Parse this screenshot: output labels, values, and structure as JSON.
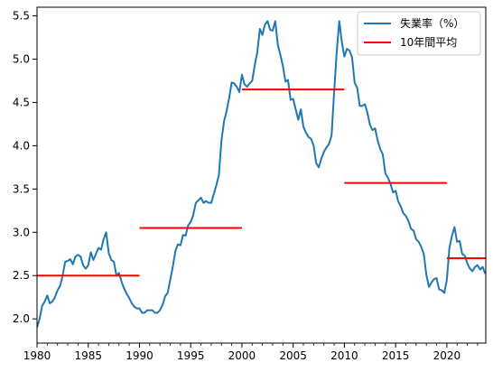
{
  "chart_data": {
    "type": "line",
    "title": "",
    "xlabel": "",
    "ylabel": "",
    "xlim": [
      1980,
      2023.8
    ],
    "ylim": [
      1.72,
      5.6
    ],
    "grid": false,
    "legend_position": "top-right",
    "x_ticks": [
      1980,
      1985,
      1990,
      1995,
      2000,
      2005,
      2010,
      2015,
      2020
    ],
    "x_tick_labels": [
      "1980",
      "1985",
      "1990",
      "1995",
      "2000",
      "2005",
      "2010",
      "2015",
      "2020"
    ],
    "y_ticks": [
      2.0,
      2.5,
      3.0,
      3.5,
      4.0,
      4.5,
      5.0,
      5.5
    ],
    "y_tick_labels": [
      "2.0",
      "2.5",
      "3.0",
      "3.5",
      "4.0",
      "4.5",
      "5.0",
      "5.5"
    ],
    "colors": {
      "rate": "#1f77b4",
      "avg": "#ff0000"
    },
    "series": [
      {
        "name": "失業率（%）",
        "kind": "line",
        "x": [
          1980.0,
          1980.25,
          1980.5,
          1980.75,
          1981.0,
          1981.25,
          1981.5,
          1981.75,
          1982.0,
          1982.25,
          1982.5,
          1982.75,
          1983.0,
          1983.25,
          1983.5,
          1983.75,
          1984.0,
          1984.25,
          1984.5,
          1984.75,
          1985.0,
          1985.25,
          1985.5,
          1985.75,
          1986.0,
          1986.25,
          1986.5,
          1986.75,
          1987.0,
          1987.25,
          1987.5,
          1987.75,
          1988.0,
          1988.25,
          1988.5,
          1988.75,
          1989.0,
          1989.25,
          1989.5,
          1989.75,
          1990.0,
          1990.25,
          1990.5,
          1990.75,
          1991.0,
          1991.25,
          1991.5,
          1991.75,
          1992.0,
          1992.25,
          1992.5,
          1992.75,
          1993.0,
          1993.25,
          1993.5,
          1993.75,
          1994.0,
          1994.25,
          1994.5,
          1994.75,
          1995.0,
          1995.25,
          1995.5,
          1995.75,
          1996.0,
          1996.25,
          1996.5,
          1996.75,
          1997.0,
          1997.25,
          1997.5,
          1997.75,
          1998.0,
          1998.25,
          1998.5,
          1998.75,
          1999.0,
          1999.25,
          1999.5,
          1999.75,
          2000.0,
          2000.25,
          2000.5,
          2000.75,
          2001.0,
          2001.25,
          2001.5,
          2001.75,
          2002.0,
          2002.25,
          2002.5,
          2002.75,
          2003.0,
          2003.25,
          2003.5,
          2003.75,
          2004.0,
          2004.25,
          2004.5,
          2004.75,
          2005.0,
          2005.25,
          2005.5,
          2005.75,
          2006.0,
          2006.25,
          2006.5,
          2006.75,
          2007.0,
          2007.25,
          2007.5,
          2007.75,
          2008.0,
          2008.25,
          2008.5,
          2008.75,
          2009.0,
          2009.25,
          2009.5,
          2009.75,
          2010.0,
          2010.25,
          2010.5,
          2010.75,
          2011.0,
          2011.25,
          2011.5,
          2011.75,
          2012.0,
          2012.25,
          2012.5,
          2012.75,
          2013.0,
          2013.25,
          2013.5,
          2013.75,
          2014.0,
          2014.25,
          2014.5,
          2014.75,
          2015.0,
          2015.25,
          2015.5,
          2015.75,
          2016.0,
          2016.25,
          2016.5,
          2016.75,
          2017.0,
          2017.25,
          2017.5,
          2017.75,
          2018.0,
          2018.25,
          2018.5,
          2018.75,
          2019.0,
          2019.25,
          2019.5,
          2019.75,
          2020.0,
          2020.25,
          2020.5,
          2020.75,
          2021.0,
          2021.25,
          2021.5,
          2021.75,
          2022.0,
          2022.25,
          2022.5,
          2022.75,
          2023.0,
          2023.25,
          2023.5,
          2023.75
        ],
        "y": [
          1.9,
          2.0,
          2.15,
          2.2,
          2.27,
          2.18,
          2.2,
          2.25,
          2.33,
          2.38,
          2.5,
          2.66,
          2.67,
          2.69,
          2.63,
          2.72,
          2.74,
          2.72,
          2.62,
          2.58,
          2.62,
          2.77,
          2.68,
          2.75,
          2.82,
          2.8,
          2.92,
          3.0,
          2.76,
          2.68,
          2.66,
          2.5,
          2.53,
          2.43,
          2.35,
          2.29,
          2.24,
          2.18,
          2.14,
          2.12,
          2.12,
          2.07,
          2.07,
          2.1,
          2.1,
          2.1,
          2.07,
          2.07,
          2.1,
          2.16,
          2.26,
          2.3,
          2.45,
          2.6,
          2.78,
          2.86,
          2.85,
          2.97,
          2.96,
          3.08,
          3.12,
          3.2,
          3.34,
          3.37,
          3.4,
          3.34,
          3.36,
          3.34,
          3.34,
          3.44,
          3.54,
          3.66,
          4.06,
          4.28,
          4.4,
          4.55,
          4.73,
          4.72,
          4.68,
          4.62,
          4.82,
          4.71,
          4.68,
          4.72,
          4.75,
          4.93,
          5.08,
          5.35,
          5.28,
          5.4,
          5.44,
          5.34,
          5.33,
          5.44,
          5.17,
          5.05,
          4.92,
          4.74,
          4.76,
          4.53,
          4.54,
          4.42,
          4.3,
          4.42,
          4.22,
          4.15,
          4.1,
          4.08,
          4.0,
          3.8,
          3.75,
          3.85,
          3.93,
          3.98,
          4.02,
          4.12,
          4.62,
          5.08,
          5.44,
          5.2,
          5.03,
          5.12,
          5.1,
          5.02,
          4.73,
          4.67,
          4.46,
          4.46,
          4.48,
          4.38,
          4.24,
          4.18,
          4.2,
          4.06,
          3.96,
          3.9,
          3.68,
          3.63,
          3.56,
          3.46,
          3.48,
          3.36,
          3.3,
          3.22,
          3.19,
          3.13,
          3.04,
          3.02,
          2.92,
          2.89,
          2.83,
          2.75,
          2.51,
          2.37,
          2.42,
          2.46,
          2.47,
          2.34,
          2.33,
          2.3,
          2.45,
          2.82,
          2.96,
          3.06,
          2.89,
          2.9,
          2.75,
          2.73,
          2.64,
          2.58,
          2.55,
          2.6,
          2.62,
          2.57,
          2.6,
          2.52
        ]
      },
      {
        "name": "10年間平均",
        "kind": "step-segments",
        "segments": [
          {
            "x0": 1980,
            "x1": 1990,
            "y": 2.5
          },
          {
            "x0": 1990,
            "x1": 2000,
            "y": 3.05
          },
          {
            "x0": 2000,
            "x1": 2010,
            "y": 4.65
          },
          {
            "x0": 2010,
            "x1": 2020,
            "y": 3.57
          },
          {
            "x0": 2020,
            "x1": 2023.8,
            "y": 2.7
          }
        ]
      }
    ]
  }
}
